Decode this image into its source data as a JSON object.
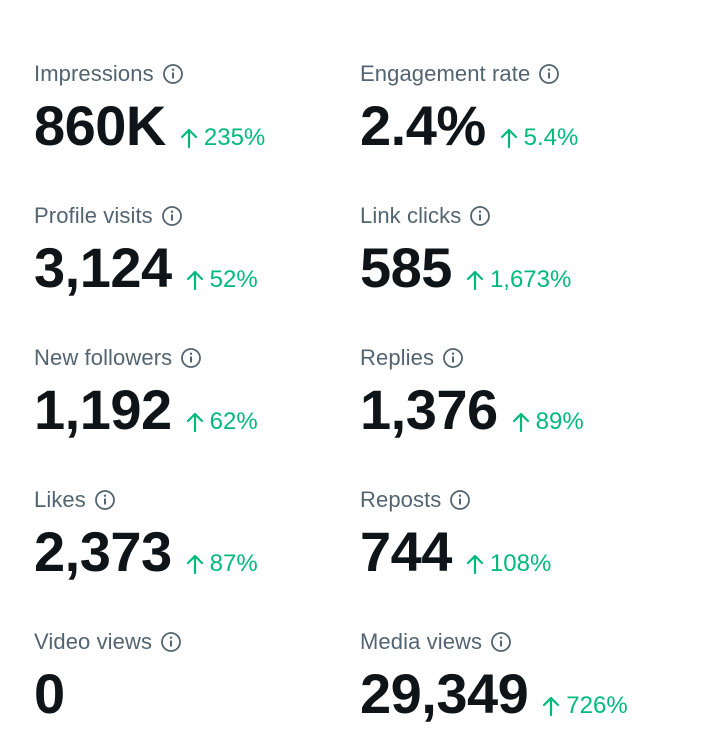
{
  "accent_color": "#00ba7c",
  "label_color": "#536471",
  "value_color": "#0f1419",
  "metrics": [
    {
      "label": "Impressions",
      "value": "860K",
      "change": "235%",
      "trend": "up"
    },
    {
      "label": "Engagement rate",
      "value": "2.4%",
      "change": "5.4%",
      "trend": "up"
    },
    {
      "label": "Profile visits",
      "value": "3,124",
      "change": "52%",
      "trend": "up"
    },
    {
      "label": "Link clicks",
      "value": "585",
      "change": "1,673%",
      "trend": "up"
    },
    {
      "label": "New followers",
      "value": "1,192",
      "change": "62%",
      "trend": "up"
    },
    {
      "label": "Replies",
      "value": "1,376",
      "change": "89%",
      "trend": "up"
    },
    {
      "label": "Likes",
      "value": "2,373",
      "change": "87%",
      "trend": "up"
    },
    {
      "label": "Reposts",
      "value": "744",
      "change": "108%",
      "trend": "up"
    },
    {
      "label": "Video views",
      "value": "0",
      "change": "",
      "trend": "none"
    },
    {
      "label": "Media views",
      "value": "29,349",
      "change": "726%",
      "trend": "up"
    }
  ]
}
